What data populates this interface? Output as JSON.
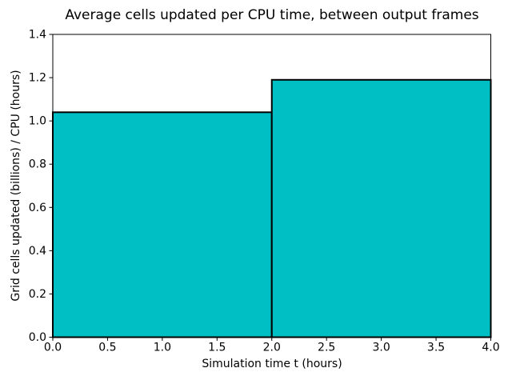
{
  "chart_data": {
    "type": "bar",
    "title": "Average cells updated per CPU time, between output frames",
    "xlabel": "Simulation time t (hours)",
    "ylabel": "Grid cells updated (billions) / CPU (hours)",
    "xlim": [
      0.0,
      4.0
    ],
    "ylim": [
      0.0,
      1.4
    ],
    "grid": false,
    "bars": [
      {
        "x_start": 0.0,
        "x_end": 2.0,
        "value": 1.04
      },
      {
        "x_start": 2.0,
        "x_end": 4.0,
        "value": 1.19
      }
    ],
    "xticks": [
      {
        "v": 0.0,
        "label": "0.0"
      },
      {
        "v": 0.5,
        "label": "0.5"
      },
      {
        "v": 1.0,
        "label": "1.0"
      },
      {
        "v": 1.5,
        "label": "1.5"
      },
      {
        "v": 2.0,
        "label": "2.0"
      },
      {
        "v": 2.5,
        "label": "2.5"
      },
      {
        "v": 3.0,
        "label": "3.0"
      },
      {
        "v": 3.5,
        "label": "3.5"
      },
      {
        "v": 4.0,
        "label": "4.0"
      }
    ],
    "yticks": [
      {
        "v": 0.0,
        "label": "0.0"
      },
      {
        "v": 0.2,
        "label": "0.2"
      },
      {
        "v": 0.4,
        "label": "0.4"
      },
      {
        "v": 0.6,
        "label": "0.6"
      },
      {
        "v": 0.8,
        "label": "0.8"
      },
      {
        "v": 1.0,
        "label": "1.0"
      },
      {
        "v": 1.2,
        "label": "1.2"
      },
      {
        "v": 1.4,
        "label": "1.4"
      }
    ],
    "colors": {
      "bar_fill": "#00bfc4",
      "bar_edge": "#000000",
      "axis": "#000000",
      "background": "#ffffff"
    }
  }
}
